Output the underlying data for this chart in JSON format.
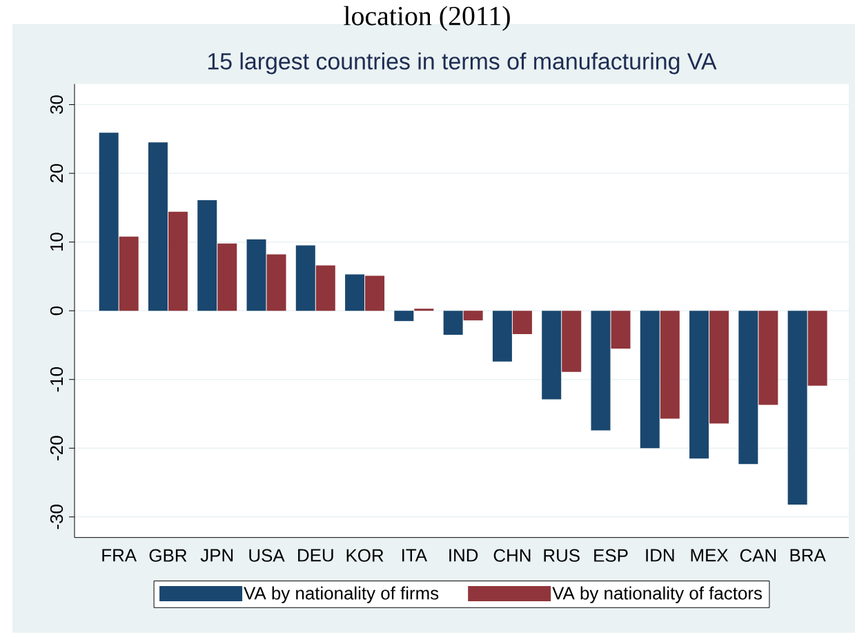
{
  "chart_data": {
    "type": "bar",
    "title": "location (2011)",
    "subtitle": "15 largest countries in terms of manufacturing VA",
    "categories": [
      "FRA",
      "GBR",
      "JPN",
      "USA",
      "DEU",
      "KOR",
      "ITA",
      "IND",
      "CHN",
      "RUS",
      "ESP",
      "IDN",
      "MEX",
      "CAN",
      "BRA"
    ],
    "series": [
      {
        "name": "VA by nationality of firms",
        "color": "#1a476f",
        "values": [
          25.9,
          24.5,
          16.1,
          10.4,
          9.5,
          5.3,
          -1.5,
          -3.5,
          -7.4,
          -12.9,
          -17.4,
          -20.0,
          -21.5,
          -22.3,
          -28.2
        ]
      },
      {
        "name": "VA by nationality of factors",
        "color": "#90353b",
        "values": [
          10.8,
          14.4,
          9.8,
          8.2,
          6.6,
          5.1,
          0.3,
          -1.4,
          -3.4,
          -8.9,
          -5.5,
          -15.7,
          -16.4,
          -13.7,
          -10.9
        ]
      }
    ],
    "ylim": [
      -33,
      33
    ],
    "yticks": [
      -30,
      -20,
      -10,
      0,
      10,
      20,
      30
    ],
    "grid": "y",
    "legend": "bottom"
  }
}
